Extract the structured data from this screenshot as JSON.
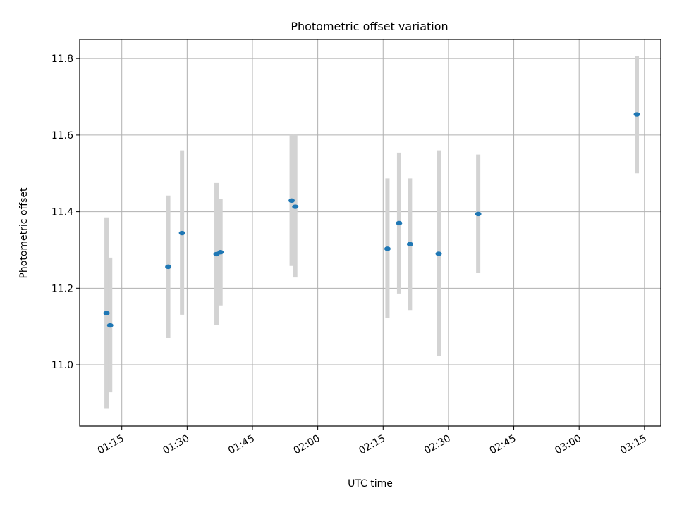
{
  "chart_data": {
    "type": "scatter",
    "title": "Photometric offset variation",
    "xlabel": "UTC time",
    "ylabel": "Photometric offset",
    "x_ticks": [
      "01:15",
      "01:30",
      "01:45",
      "02:00",
      "02:15",
      "02:30",
      "02:45",
      "03:00",
      "03:15"
    ],
    "y_ticks": [
      11.0,
      11.2,
      11.4,
      11.6,
      11.8
    ],
    "xlim": [
      "01:05:20",
      "03:18:45"
    ],
    "ylim": [
      10.84,
      11.85
    ],
    "grid": true,
    "marker_color": "#1f77b4",
    "errorbar_color": "#d3d3d3",
    "points": [
      {
        "time": "01:11:30",
        "value": 11.135,
        "low": 10.885,
        "high": 11.385
      },
      {
        "time": "01:12:20",
        "value": 11.103,
        "low": 10.928,
        "high": 11.28
      },
      {
        "time": "01:25:40",
        "value": 11.256,
        "low": 11.07,
        "high": 11.442
      },
      {
        "time": "01:28:50",
        "value": 11.344,
        "low": 11.131,
        "high": 11.56
      },
      {
        "time": "01:36:45",
        "value": 11.289,
        "low": 11.103,
        "high": 11.475
      },
      {
        "time": "01:37:40",
        "value": 11.294,
        "low": 11.155,
        "high": 11.433
      },
      {
        "time": "01:54:00",
        "value": 11.429,
        "low": 11.258,
        "high": 11.6
      },
      {
        "time": "01:54:50",
        "value": 11.413,
        "low": 11.228,
        "high": 11.6
      },
      {
        "time": "02:16:00",
        "value": 11.303,
        "low": 11.123,
        "high": 11.487
      },
      {
        "time": "02:18:40",
        "value": 11.37,
        "low": 11.186,
        "high": 11.554
      },
      {
        "time": "02:21:10",
        "value": 11.315,
        "low": 11.143,
        "high": 11.487
      },
      {
        "time": "02:27:45",
        "value": 11.29,
        "low": 11.024,
        "high": 11.56
      },
      {
        "time": "02:36:50",
        "value": 11.394,
        "low": 11.24,
        "high": 11.549
      },
      {
        "time": "03:13:15",
        "value": 11.654,
        "low": 11.5,
        "high": 11.806
      }
    ]
  }
}
